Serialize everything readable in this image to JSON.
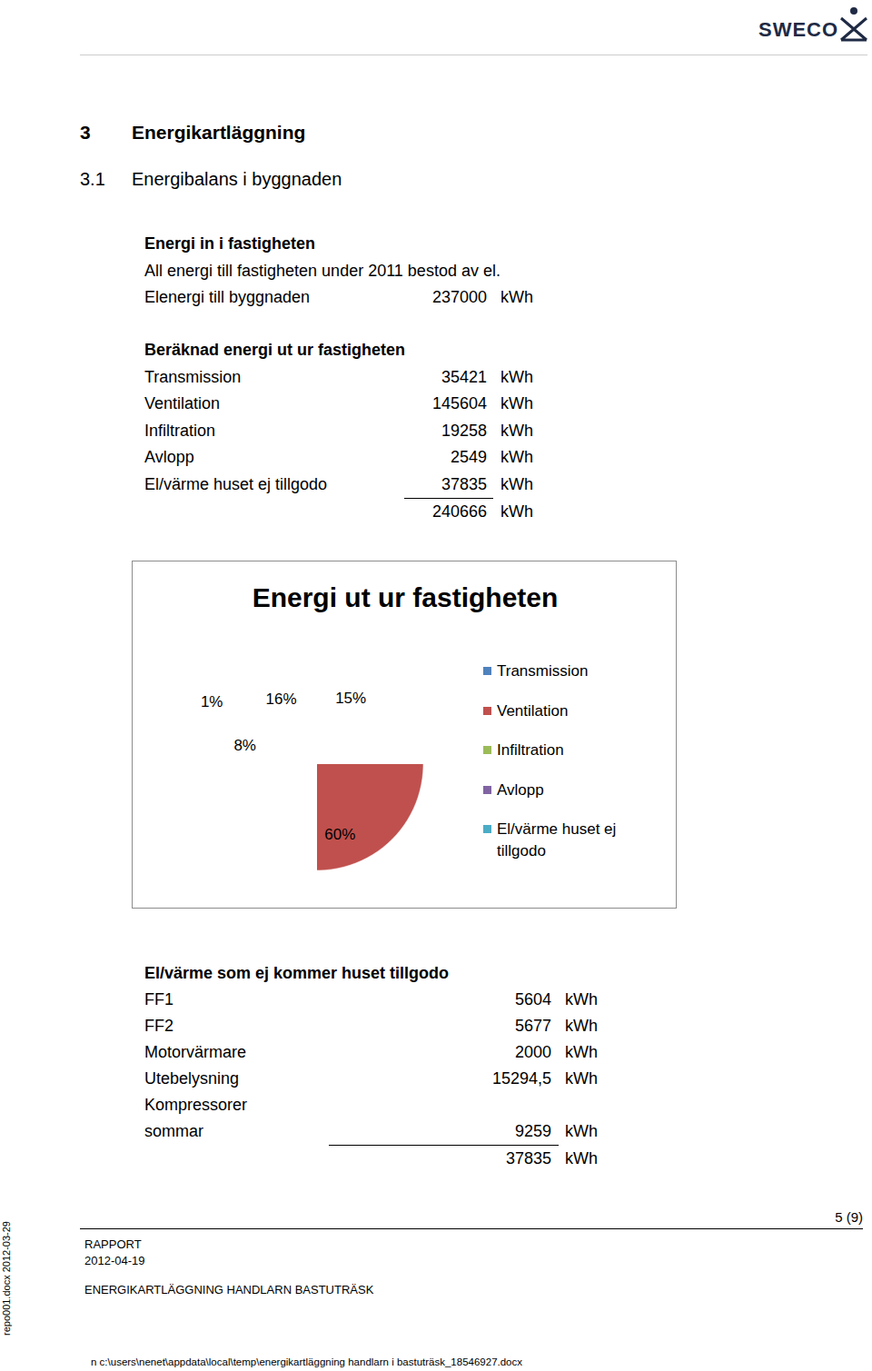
{
  "header": {
    "logo": "SWECO"
  },
  "section": {
    "number": "3",
    "title": "Energikartläggning"
  },
  "subsection": {
    "number": "3.1",
    "title": "Energibalans i byggnaden"
  },
  "unit": "kWh",
  "energy_in": {
    "title": "Energi in i fastigheten",
    "text": "All energi till fastigheten under 2011 bestod av el.",
    "rows": [
      {
        "label": "Elenergi till byggnaden",
        "value": 237000
      }
    ]
  },
  "energy_out": {
    "title": "Beräknad energi ut ur fastigheten",
    "rows": [
      {
        "label": "Transmission",
        "value": 35421
      },
      {
        "label": "Ventilation",
        "value": 145604
      },
      {
        "label": "Infiltration",
        "value": 19258
      },
      {
        "label": "Avlopp",
        "value": 2549
      },
      {
        "label": "El/värme huset ej tillgodo",
        "value": 37835
      }
    ],
    "total": 240666
  },
  "chart_data": {
    "type": "pie",
    "title": "Energi ut ur fastigheten",
    "categories": [
      "Transmission",
      "Ventilation",
      "Infiltration",
      "Avlopp",
      "El/värme huset ej tillgodo"
    ],
    "values": [
      15,
      60,
      8,
      1,
      16
    ],
    "value_labels": [
      "15%",
      "60%",
      "8%",
      "1%",
      "16%"
    ],
    "colors": [
      "#4f81bd",
      "#c0504d",
      "#9bbb59",
      "#8064a2",
      "#4bacc6"
    ],
    "data_labels": true,
    "legend": "right"
  },
  "waste": {
    "title": "El/värme som ej kommer huset tillgodo",
    "rows": [
      {
        "label": "FF1",
        "value": 5604
      },
      {
        "label": "FF2",
        "value": 5677
      },
      {
        "label": "Motorvärmare",
        "value": 2000
      },
      {
        "label": "Utebelysning",
        "value": 15294.5,
        "value_label": "15294,5"
      },
      {
        "label": "Kompressorer sommar",
        "value": 9259
      }
    ],
    "total": 37835
  },
  "footer": {
    "page": "5 (9)",
    "doc_type": "RAPPORT",
    "date": "2012-04-19",
    "project": "ENERGIKARTLÄGGNING HANDLARN BASTUTRÄSK",
    "template": "repo001.docx 2012-03-29",
    "path": "n c:\\users\\nenet\\appdata\\local\\temp\\energikartläggning handlarn i bastuträsk_18546927.docx"
  }
}
